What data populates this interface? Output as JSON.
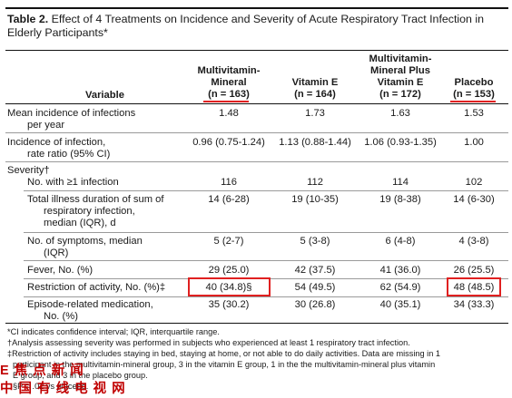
{
  "title": {
    "label": "Table 2.",
    "text": " Effect of 4 Treatments on Incidence and Severity of Acute Respiratory Tract Infection in Elderly Participants*"
  },
  "columns": {
    "variable": "Variable",
    "c1": {
      "name_line1": "Multivitamin-",
      "name_line2": "Mineral",
      "n": "(n = 163)"
    },
    "c2": {
      "name_line1": "Vitamin E",
      "n": "(n = 164)"
    },
    "c3": {
      "name_line1": "Multivitamin-",
      "name_line2": "Mineral Plus",
      "name_line3": "Vitamin E",
      "n": "(n = 172)"
    },
    "c4": {
      "name_line1": "Placebo",
      "n": "(n = 153)"
    }
  },
  "rows": [
    {
      "label_line1": "Mean incidence of infections",
      "label_line2": "per year",
      "values": [
        "1.48",
        "1.73",
        "1.63",
        "1.53"
      ]
    },
    {
      "label_line1": "Incidence of infection,",
      "label_line2": "rate ratio (95% CI)",
      "values": [
        "0.96 (0.75-1.24)",
        "1.13 (0.88-1.44)",
        "1.06 (0.93-1.35)",
        "1.00"
      ]
    },
    {
      "label_line1": "Severity†"
    },
    {
      "label_line1": "No. with ≥1 infection",
      "values": [
        "116",
        "112",
        "114",
        "102"
      ]
    },
    {
      "label_line1": "Total illness duration of sum of",
      "label_line2": "respiratory infection,",
      "label_line3": "median (IQR), d",
      "values": [
        "14 (6-28)",
        "19 (10-35)",
        "19 (8-38)",
        "14 (6-30)"
      ]
    },
    {
      "label_line1": "No. of symptoms, median",
      "label_line2": "(IQR)",
      "values": [
        "5 (2-7)",
        "5 (3-8)",
        "6 (4-8)",
        "4 (3-8)"
      ]
    },
    {
      "label_line1": "Fever, No. (%)",
      "values": [
        "29 (25.0)",
        "42 (37.5)",
        "41 (36.0)",
        "26 (25.5)"
      ]
    },
    {
      "label_line1": "Restriction of activity, No. (%)‡",
      "values": [
        "40 (34.8)§",
        "54 (49.5)",
        "62 (54.9)",
        "48 (48.5)"
      ]
    },
    {
      "label_line1": "Episode-related medication,",
      "label_line2": "No. (%)",
      "values": [
        "35 (30.2)",
        "30 (26.8)",
        "40 (35.1)",
        "34 (33.3)"
      ]
    }
  ],
  "footnotes": {
    "f1": "*CI indicates confidence interval; IQR, interquartile range.",
    "f2": "†Analysis assessing severity was performed in subjects who experienced at least 1 respiratory tract infection.",
    "f3": "‡Restriction of activity includes staying in bed, staying at home, or not able to do daily activities. Data are missing in 1",
    "f4": "  participant in the multivitamin-mineral group, 3 in the vitamin E group, 1 in the the multivitamin-mineral plus vitamin",
    "f5": "  E group, and 3 in the placebo group.",
    "f6": "  §P = .02 vs placebo."
  },
  "watermark": {
    "line1": "E 焦 点 新 闻",
    "line2": "中 国 有 线 电 视 网"
  },
  "highlight_color": "#e02020"
}
